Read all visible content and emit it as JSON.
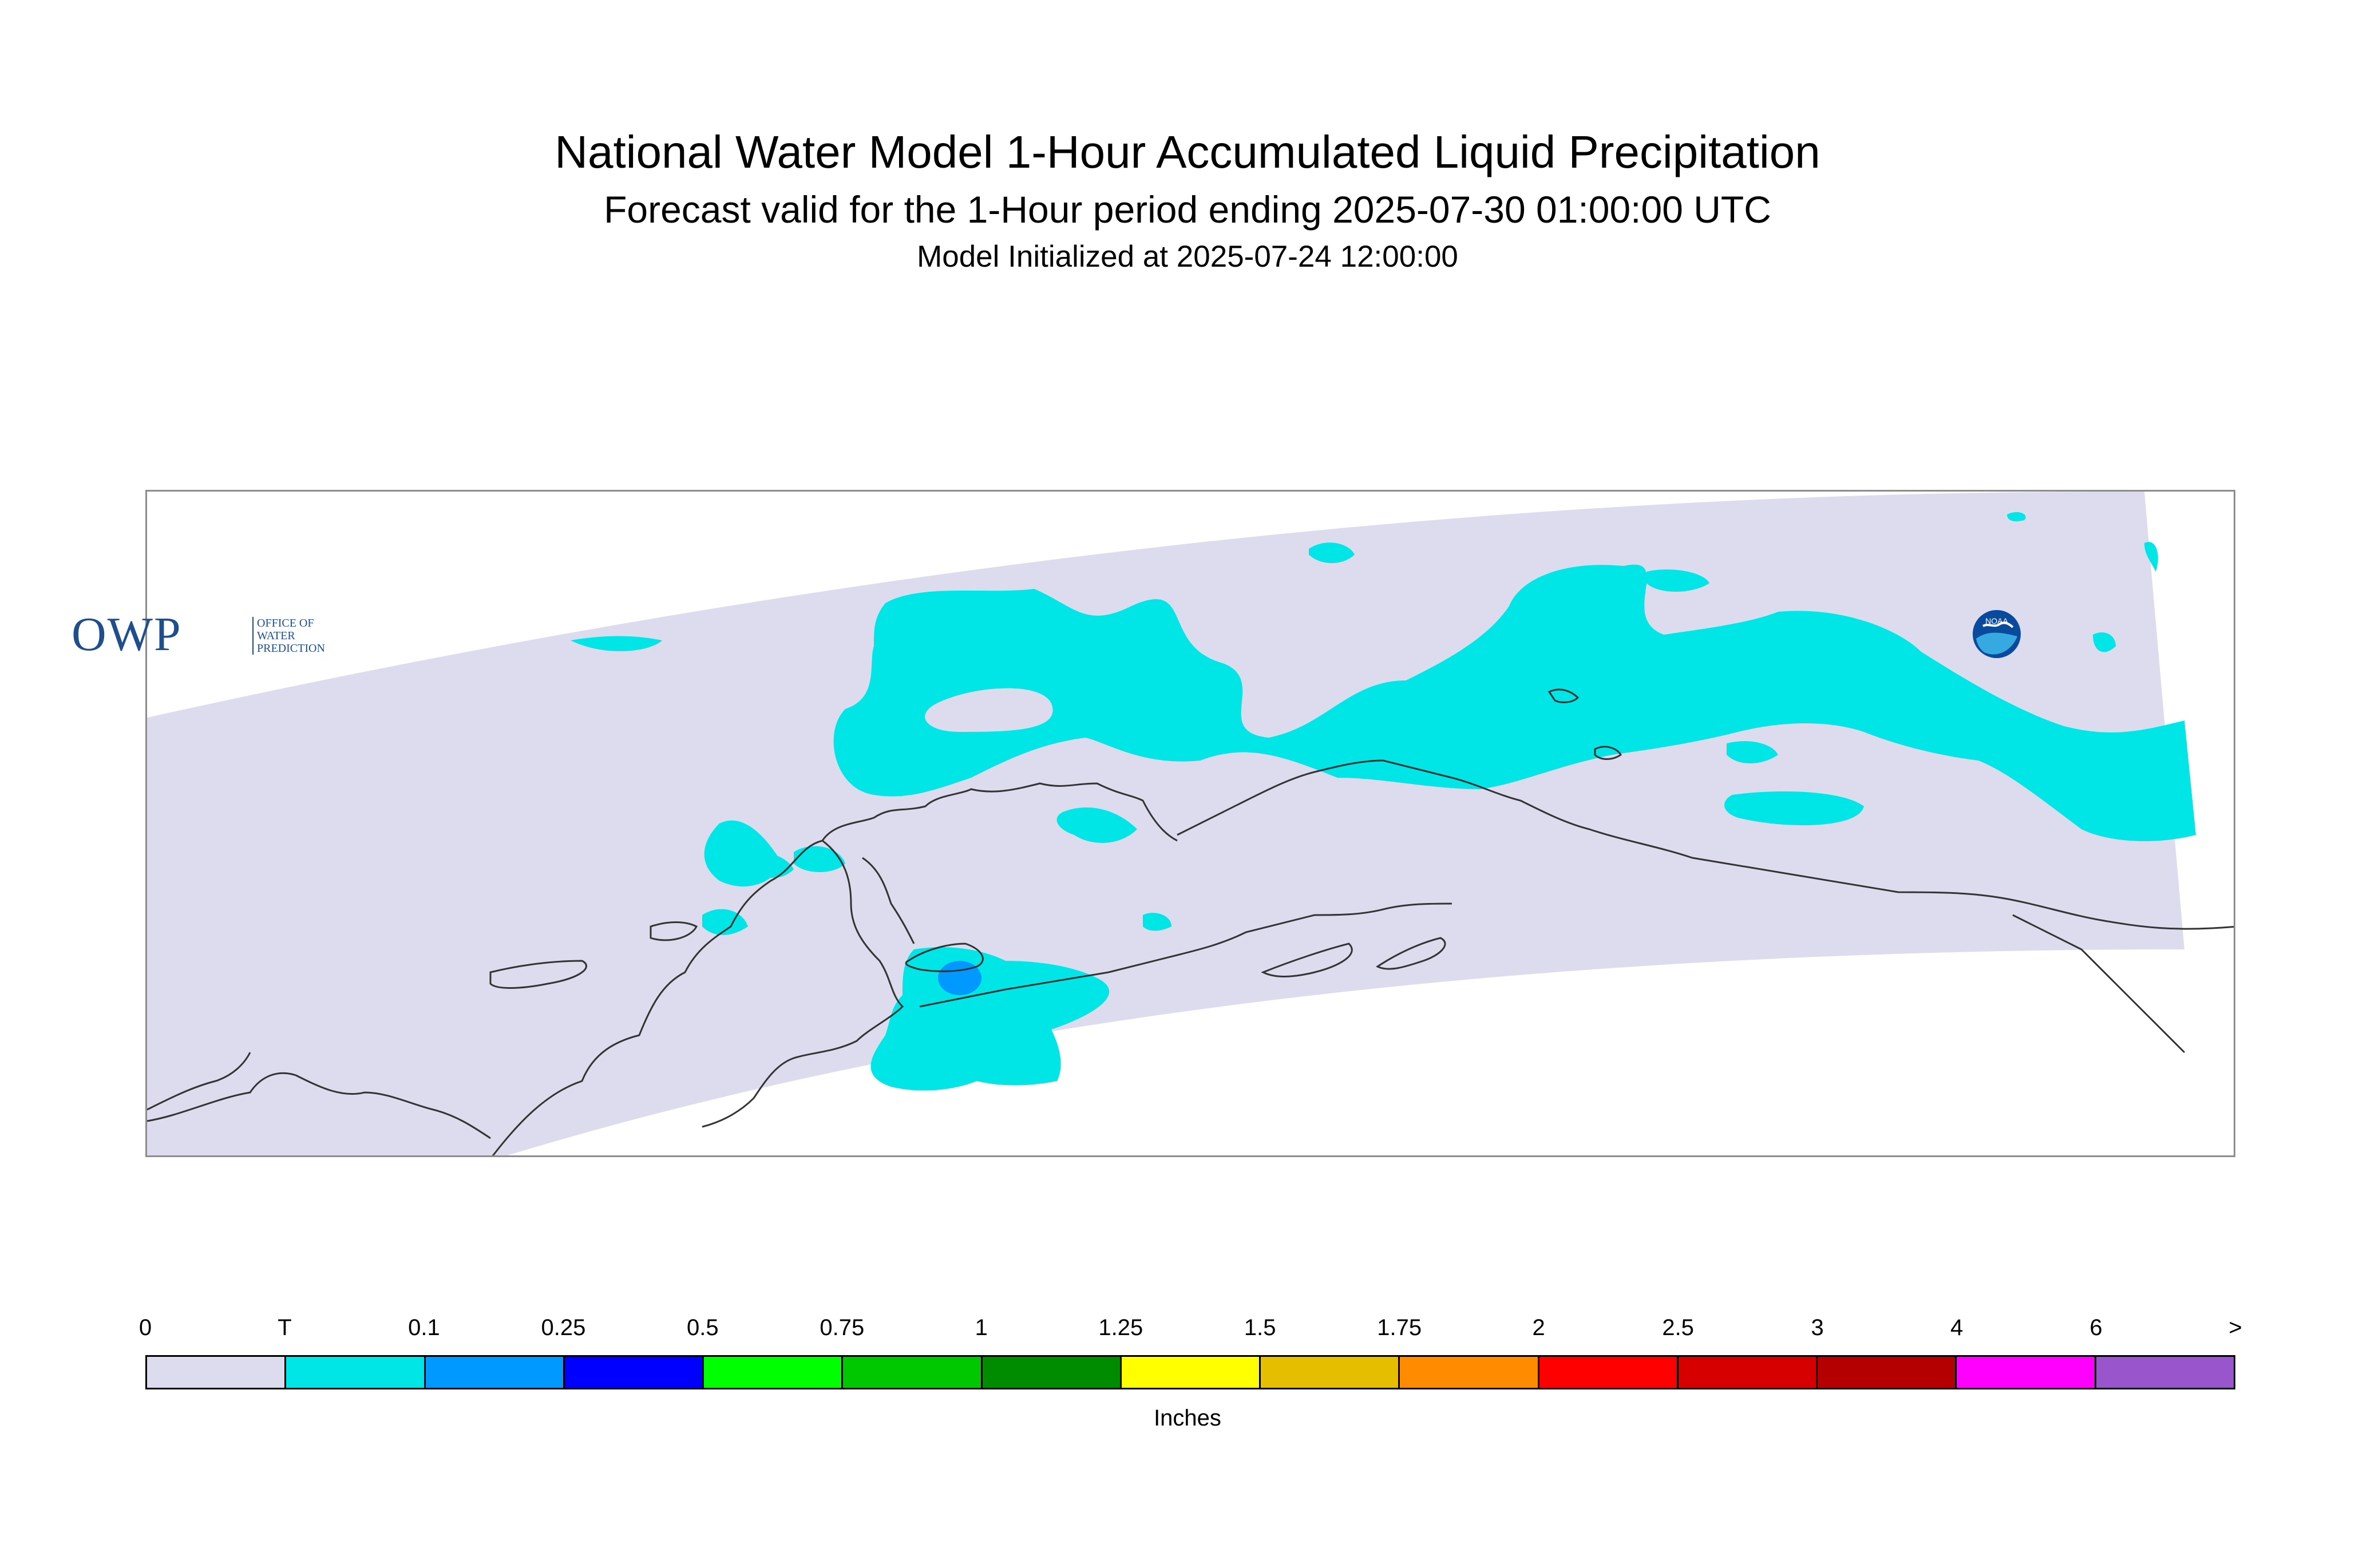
{
  "header": {
    "title": "National Water Model 1-Hour Accumulated Liquid Precipitation",
    "subtitle": "Forecast valid for the 1-Hour period ending 2025-07-30 01:00:00 UTC",
    "init_line": "Model Initialized at 2025-07-24 12:00:00"
  },
  "map": {
    "domain_fill_color": "#dcdcee",
    "coastline_color": "#333333",
    "trace_color": "#00e6e6",
    "light_rain_color": "#0099ff",
    "owp_logo": {
      "icon": "owp-logo",
      "letters": "OWP",
      "subtext": [
        "OFFICE OF",
        "WATER",
        "PREDICTION"
      ]
    },
    "noaa_logo": {
      "icon": "noaa-logo",
      "text": "NOAA"
    }
  },
  "legend": {
    "units": "Inches",
    "ticks": [
      "0",
      "T",
      "0.1",
      "0.25",
      "0.5",
      "0.75",
      "1",
      "1.25",
      "1.5",
      "1.75",
      "2",
      "2.5",
      "3",
      "4",
      "6",
      ">"
    ],
    "colors": [
      "#dcdcee",
      "#00e6e6",
      "#0099ff",
      "#0000ff",
      "#00ff00",
      "#00c800",
      "#008c00",
      "#ffff00",
      "#e6be00",
      "#ff8c00",
      "#ff0000",
      "#d70000",
      "#b40000",
      "#ff00ff",
      "#9955cc"
    ]
  }
}
